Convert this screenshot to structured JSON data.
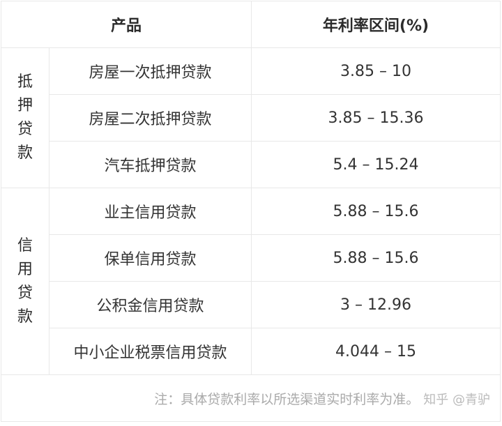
{
  "header": {
    "product": "产品",
    "rate": "年利率区间(%)"
  },
  "groups": [
    {
      "label": [
        "抵",
        "押",
        "贷",
        "款"
      ],
      "rows": [
        {
          "product": "房屋一次抵押贷款",
          "rate": "3.85 – 10"
        },
        {
          "product": "房屋二次抵押贷款",
          "rate": "3.85 – 15.36"
        },
        {
          "product": "汽车抵押贷款",
          "rate": "5.4 – 15.24"
        }
      ]
    },
    {
      "label": [
        "信",
        "用",
        "贷",
        "款"
      ],
      "rows": [
        {
          "product": "业主信用贷款",
          "rate": "5.88 – 15.6"
        },
        {
          "product": "保单信用贷款",
          "rate": "5.88 – 15.6"
        },
        {
          "product": "公积金信用贷款",
          "rate": "3 – 12.96"
        },
        {
          "product": "中小企业税票信用贷款",
          "rate": "4.044 – 15"
        }
      ]
    }
  ],
  "footer": {
    "note": "注：具体贷款利率以所选渠道实时利率为准。",
    "watermark": "知乎 @青驴"
  }
}
